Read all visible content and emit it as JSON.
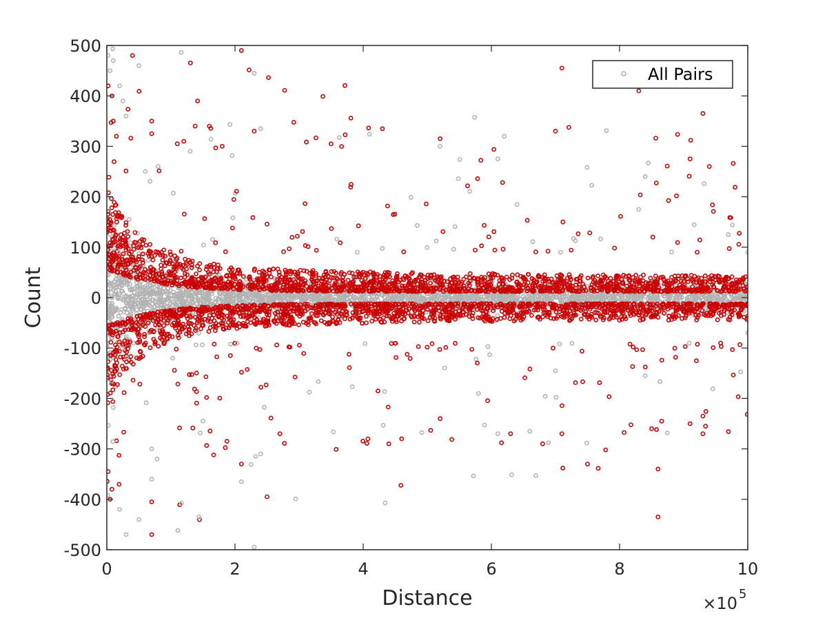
{
  "chart_data": {
    "type": "scatter",
    "title": "",
    "xlabel": "Distance",
    "ylabel": "Count",
    "x_exponent_label": "×10",
    "x_exponent_power": "5",
    "xlim": [
      0,
      10
    ],
    "ylim": [
      -500,
      500
    ],
    "x_ticks": [
      "0",
      "2",
      "4",
      "6",
      "8",
      "10"
    ],
    "y_ticks": [
      "500",
      "400",
      "300",
      "200",
      "100",
      "0",
      "-100",
      "-200",
      "-300",
      "-400",
      "-500"
    ],
    "grid": false,
    "legend": {
      "placement": "top-right",
      "entries": [
        "All Pairs"
      ]
    },
    "series": [
      {
        "name": "All Pairs",
        "color": "#b3b3b3",
        "marker": "circle-open",
        "note_points": [
          [
            0.02,
            480
          ],
          [
            0.05,
            450
          ],
          [
            0.1,
            470
          ],
          [
            0.2,
            420
          ],
          [
            0.25,
            390
          ],
          [
            0.3,
            360
          ],
          [
            0.5,
            460
          ],
          [
            0.6,
            250
          ],
          [
            0.8,
            260
          ],
          [
            2.3,
            445
          ],
          [
            2.4,
            335
          ],
          [
            5.2,
            300
          ],
          [
            6.2,
            320
          ],
          [
            6.1,
            275
          ],
          [
            8.4,
            240
          ],
          [
            8.3,
            175
          ],
          [
            10.0,
            90
          ],
          [
            10.0,
            -70
          ],
          [
            0.2,
            -420
          ],
          [
            0.3,
            -470
          ],
          [
            0.5,
            -440
          ],
          [
            0.7,
            -360
          ],
          [
            0.7,
            -300
          ],
          [
            2.1,
            -365
          ],
          [
            2.4,
            -310
          ],
          [
            1.5,
            -245
          ],
          [
            5.8,
            -190
          ],
          [
            6.1,
            -270
          ],
          [
            6.6,
            -265
          ],
          [
            7.0,
            -145
          ],
          [
            8.4,
            -155
          ],
          [
            2.3,
            -495
          ]
        ]
      },
      {
        "name": "",
        "color": "#cc0000",
        "marker": "circle-open",
        "note_points": [
          [
            0.02,
            420
          ],
          [
            0.08,
            400
          ],
          [
            0.1,
            350
          ],
          [
            0.15,
            320
          ],
          [
            0.4,
            480
          ],
          [
            0.7,
            350
          ],
          [
            0.7,
            325
          ],
          [
            1.1,
            305
          ],
          [
            1.2,
            310
          ],
          [
            1.6,
            340
          ],
          [
            1.8,
            300
          ],
          [
            2.1,
            490
          ],
          [
            2.3,
            330
          ],
          [
            4.3,
            335
          ],
          [
            5.2,
            315
          ],
          [
            7.0,
            330
          ],
          [
            7.1,
            455
          ],
          [
            8.3,
            410
          ],
          [
            9.3,
            365
          ],
          [
            9.1,
            275
          ],
          [
            9.4,
            260
          ],
          [
            0.02,
            -345
          ],
          [
            0.05,
            -400
          ],
          [
            0.08,
            -380
          ],
          [
            0.7,
            -470
          ],
          [
            0.7,
            -405
          ],
          [
            2.1,
            -330
          ],
          [
            2.5,
            -395
          ],
          [
            2.7,
            -270
          ],
          [
            4.4,
            -290
          ],
          [
            4.6,
            -280
          ],
          [
            5.2,
            -240
          ],
          [
            6.3,
            -270
          ],
          [
            6.8,
            -290
          ],
          [
            7.1,
            -270
          ],
          [
            7.5,
            -330
          ],
          [
            8.6,
            -435
          ],
          [
            8.6,
            -340
          ],
          [
            8.5,
            -260
          ],
          [
            9.1,
            -250
          ],
          [
            9.3,
            -270
          ],
          [
            9.3,
            -235
          ]
        ]
      }
    ]
  }
}
